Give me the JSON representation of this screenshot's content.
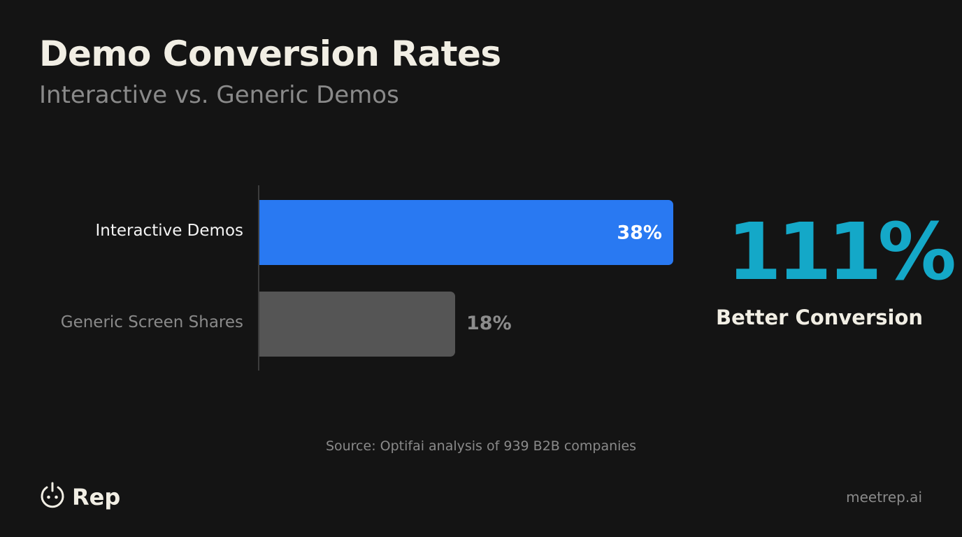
{
  "header": {
    "title": "Demo Conversion Rates",
    "subtitle": "Interactive vs. Generic Demos"
  },
  "bars": [
    {
      "label": "Interactive Demos",
      "value": 38,
      "value_label": "38%",
      "color": "#2979F2",
      "label_color": "#F4F4F4"
    },
    {
      "label": "Generic Screen Shares",
      "value": 18,
      "value_label": "18%",
      "color": "#555555",
      "label_color": "#8A8A8A"
    }
  ],
  "highlight": {
    "value": "111%",
    "caption": "Better Conversion",
    "color": "#14A8C8"
  },
  "source": "Source: Optifai analysis of 939 B2B companies",
  "footer": {
    "logo_text": "Rep",
    "logo_icon": "power-plug-icon",
    "site": "meetrep.ai"
  },
  "chart_data": {
    "type": "bar",
    "orientation": "horizontal",
    "title": "Demo Conversion Rates",
    "subtitle": "Interactive vs. Generic Demos",
    "categories": [
      "Interactive Demos",
      "Generic Screen Shares"
    ],
    "values": [
      38,
      18
    ],
    "value_labels": [
      "38%",
      "18%"
    ],
    "unit": "%",
    "xlabel": "",
    "ylabel": "",
    "grid": false,
    "legend": null,
    "colors": [
      "#2979F2",
      "#555555"
    ],
    "annotations": [
      {
        "text": "111%",
        "position": "right"
      },
      {
        "text": "Better Conversion",
        "position": "right"
      },
      {
        "text": "Source: Optifai analysis of 939 B2B companies",
        "position": "bottom"
      }
    ]
  }
}
